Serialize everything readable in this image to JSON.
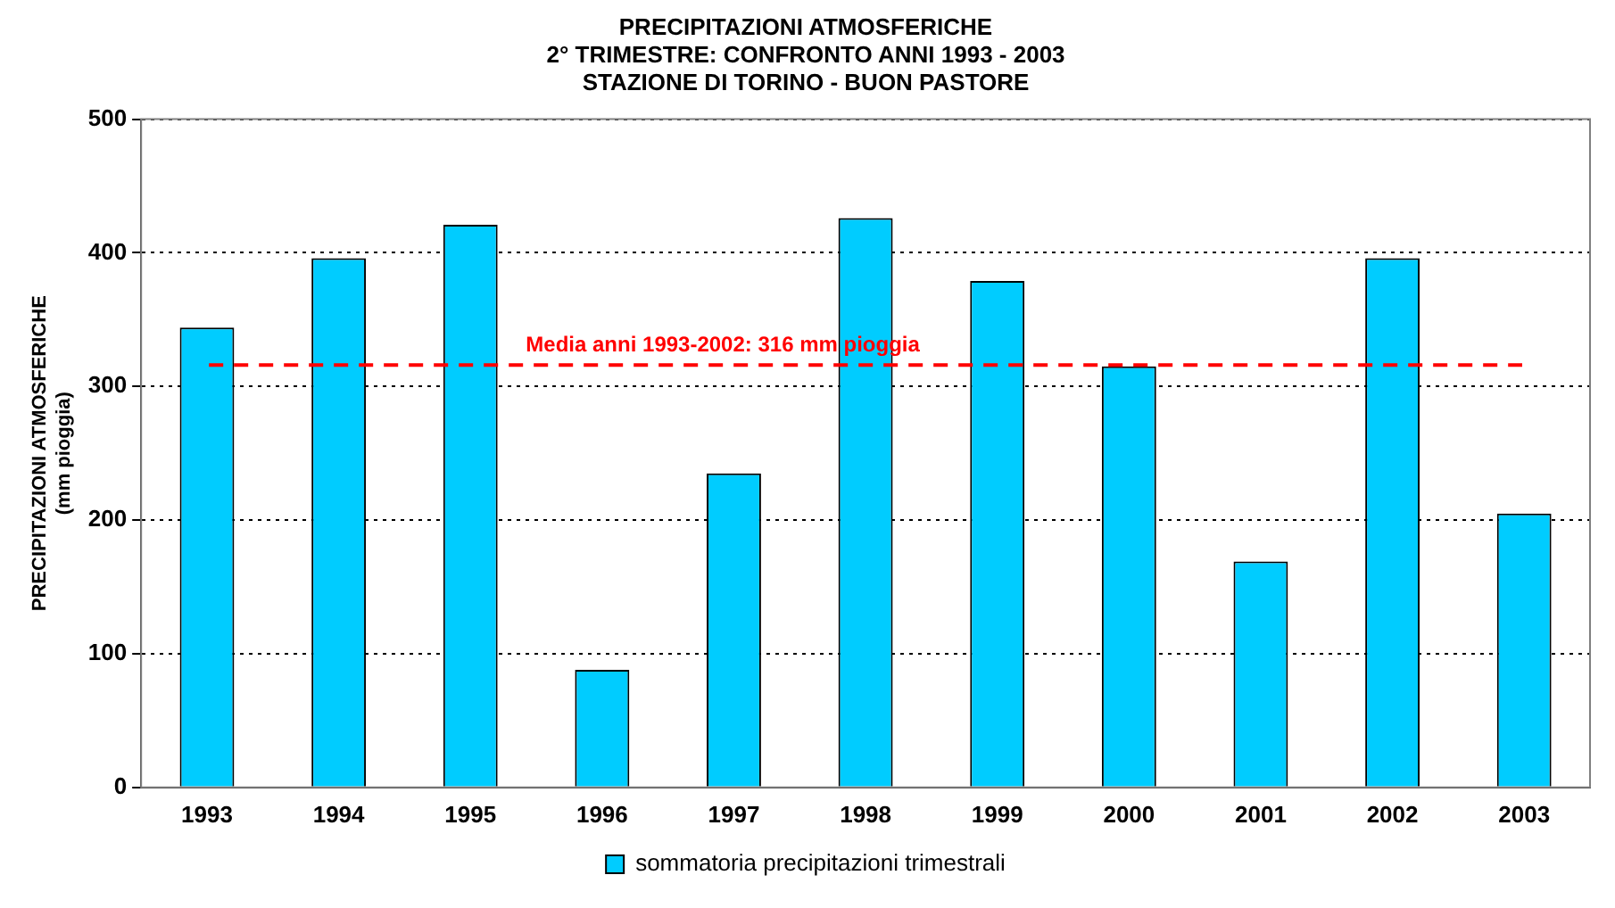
{
  "chart_data": {
    "type": "bar",
    "title": "PRECIPITAZIONI ATMOSFERICHE\n2° TRIMESTRE: CONFRONTO ANNI 1993 - 2003\nSTAZIONE DI TORINO - BUON PASTORE",
    "ylabel": "PRECIPITAZIONI ATMOSFERICHE\n(mm pioggia)",
    "categories": [
      "1993",
      "1994",
      "1995",
      "1996",
      "1997",
      "1998",
      "1999",
      "2000",
      "2001",
      "2002",
      "2003"
    ],
    "series": [
      {
        "name": "sommatoria precipitazioni trimestrali",
        "color": "#00ccff",
        "values": [
          344,
          396,
          421,
          88,
          235,
          426,
          379,
          315,
          169,
          396,
          205
        ]
      }
    ],
    "ylim": [
      0,
      500
    ],
    "yticks": [
      0,
      100,
      200,
      300,
      400,
      500
    ],
    "grid": "y",
    "legend": "bottom",
    "ref_lines": [
      {
        "axis": "y",
        "value": 316,
        "label": "Media anni 1993-2002: 316 mm pioggia",
        "color": "#ff0000",
        "line_style": "dashed"
      }
    ]
  }
}
